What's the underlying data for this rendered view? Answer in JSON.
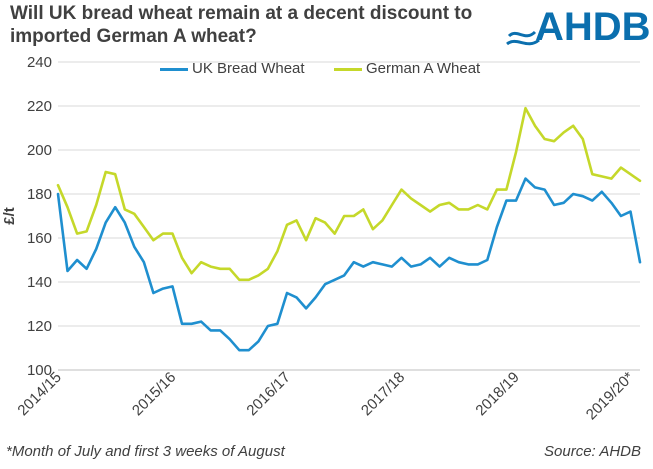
{
  "title": "Will UK bread wheat remain at a decent discount to imported German A wheat?",
  "logo_text": "AHDB",
  "footnote": "*Month of July and first 3 weeks of August",
  "source": "Source: AHDB",
  "colors": {
    "uk": "#1f8fcf",
    "german": "#c5d82a",
    "text": "#404040",
    "logo": "#0b6fae",
    "grid": "#d9d9d9"
  },
  "chart_data": {
    "type": "line",
    "ylabel": "£/t",
    "ylim": [
      100,
      240
    ],
    "yticks": [
      100,
      120,
      140,
      160,
      180,
      200,
      220,
      240
    ],
    "xtick_labels": [
      "2014/15",
      "2015/16",
      "2016/17",
      "2017/18",
      "2018/19",
      "2019/20*"
    ],
    "xtick_index": [
      0,
      12,
      24,
      36,
      48,
      60
    ],
    "grid": true,
    "legend_position": "top",
    "series": [
      {
        "name": "UK Bread Wheat",
        "values": [
          180,
          145,
          150,
          146,
          155,
          167,
          174,
          167,
          156,
          149,
          135,
          137,
          138,
          121,
          121,
          122,
          118,
          118,
          114,
          109,
          109,
          113,
          120,
          121,
          135,
          133,
          128,
          133,
          139,
          141,
          143,
          149,
          147,
          149,
          148,
          147,
          151,
          147,
          148,
          151,
          147,
          151,
          149,
          148,
          148,
          150,
          165,
          177,
          177,
          187,
          183,
          182,
          175,
          176,
          180,
          179,
          177,
          181,
          176,
          170,
          172,
          149
        ]
      },
      {
        "name": "German A Wheat",
        "values": [
          184,
          174,
          162,
          163,
          175,
          190,
          189,
          173,
          171,
          165,
          159,
          162,
          162,
          151,
          144,
          149,
          147,
          146,
          146,
          141,
          141,
          143,
          146,
          154,
          166,
          168,
          159,
          169,
          167,
          162,
          170,
          170,
          173,
          164,
          168,
          175,
          182,
          178,
          175,
          172,
          175,
          176,
          173,
          173,
          175,
          173,
          182,
          182,
          199,
          219,
          211,
          205,
          204,
          208,
          211,
          205,
          189,
          188,
          187,
          192,
          189,
          186
        ]
      }
    ]
  }
}
